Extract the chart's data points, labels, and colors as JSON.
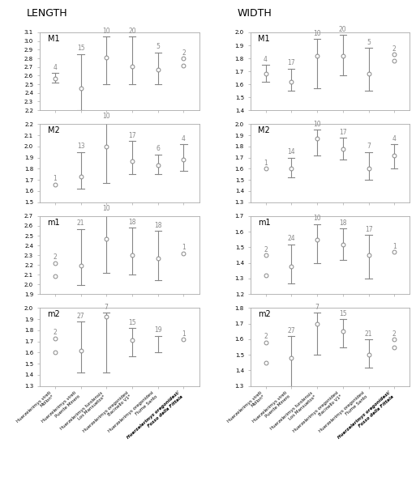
{
  "col_titles": [
    "LENGTH",
    "WIDTH"
  ],
  "row_labels": [
    "M1",
    "M2",
    "m1",
    "m2"
  ],
  "x_labels": [
    "Huerzelerimys vireti\nMollon*",
    "Huerzelerimys vireti\nPuente Minero",
    "Huerzelerimys turolensis\nLos Mansuetos*",
    "Huerzelerimys oregonidesi\nBacinello V1*",
    "Huerzelerimys oregonidesi\nFiume Santo",
    "Huerzelerimys oregonidesi/\nFosso della Fittaia"
  ],
  "panels": {
    "LENGTH_M1": {
      "n": [
        4,
        15,
        10,
        20,
        5,
        2
      ],
      "mean": [
        2.57,
        2.45,
        2.81,
        2.71,
        2.67,
        null
      ],
      "min": [
        2.52,
        2.2,
        2.5,
        2.5,
        2.5,
        2.72
      ],
      "max": [
        2.63,
        2.85,
        3.05,
        3.05,
        2.87,
        2.8
      ],
      "two_singles": [
        false,
        false,
        false,
        false,
        false,
        true
      ],
      "single_vals": [
        null,
        null,
        null,
        null,
        null,
        [
          2.72,
          2.8
        ]
      ],
      "ylim": [
        2.2,
        3.1
      ],
      "yticks": [
        2.2,
        2.3,
        2.4,
        2.5,
        2.6,
        2.7,
        2.8,
        2.9,
        3.0,
        3.1
      ]
    },
    "LENGTH_M2": {
      "n": [
        1,
        13,
        10,
        17,
        6,
        4
      ],
      "mean": [
        null,
        1.73,
        2.0,
        1.87,
        1.83,
        1.88
      ],
      "min": [
        1.66,
        1.62,
        1.67,
        1.75,
        1.75,
        1.78
      ],
      "max": [
        1.66,
        1.95,
        2.22,
        2.05,
        1.93,
        2.02
      ],
      "two_singles": [
        false,
        false,
        false,
        false,
        false,
        false
      ],
      "single_vals": [
        1.66,
        null,
        null,
        null,
        null,
        null
      ],
      "ylim": [
        1.5,
        2.2
      ],
      "yticks": [
        1.5,
        1.6,
        1.7,
        1.8,
        1.9,
        2.0,
        2.1,
        2.2
      ]
    },
    "LENGTH_m1": {
      "n": [
        2,
        21,
        10,
        18,
        18,
        1
      ],
      "mean": [
        null,
        2.19,
        2.47,
        2.3,
        2.27,
        null
      ],
      "min": [
        2.08,
        1.99,
        2.12,
        2.1,
        2.04,
        2.32
      ],
      "max": [
        2.22,
        2.57,
        2.72,
        2.58,
        2.55,
        2.32
      ],
      "two_singles": [
        true,
        false,
        false,
        false,
        false,
        false
      ],
      "single_vals": [
        [
          2.08,
          2.22
        ],
        null,
        null,
        null,
        null,
        2.32
      ],
      "ylim": [
        1.9,
        2.7
      ],
      "yticks": [
        1.9,
        2.0,
        2.1,
        2.2,
        2.3,
        2.4,
        2.5,
        2.6,
        2.7
      ]
    },
    "LENGTH_m2": {
      "n": [
        2,
        27,
        7,
        15,
        19,
        1
      ],
      "mean": [
        null,
        1.62,
        1.92,
        1.71,
        null,
        null
      ],
      "min": [
        1.6,
        1.42,
        1.42,
        1.57,
        1.6,
        1.72
      ],
      "max": [
        1.73,
        1.88,
        1.96,
        1.82,
        1.75,
        1.72
      ],
      "two_singles": [
        true,
        false,
        false,
        false,
        false,
        false
      ],
      "single_vals": [
        [
          1.6,
          1.73
        ],
        null,
        null,
        null,
        null,
        1.72
      ],
      "ylim": [
        1.3,
        2.0
      ],
      "yticks": [
        1.3,
        1.4,
        1.5,
        1.6,
        1.7,
        1.8,
        1.9,
        2.0
      ]
    },
    "WIDTH_M1": {
      "n": [
        4,
        17,
        10,
        20,
        5,
        2
      ],
      "mean": [
        1.68,
        1.62,
        1.82,
        1.82,
        1.68,
        null
      ],
      "min": [
        1.62,
        1.55,
        1.57,
        1.67,
        1.55,
        1.78
      ],
      "max": [
        1.75,
        1.72,
        1.95,
        1.98,
        1.88,
        1.83
      ],
      "two_singles": [
        false,
        false,
        false,
        false,
        false,
        true
      ],
      "single_vals": [
        null,
        null,
        null,
        null,
        null,
        [
          1.78,
          1.83
        ]
      ],
      "ylim": [
        1.4,
        2.0
      ],
      "yticks": [
        1.4,
        1.5,
        1.6,
        1.7,
        1.8,
        1.9,
        2.0
      ]
    },
    "WIDTH_M2": {
      "n": [
        1,
        14,
        10,
        17,
        7,
        4
      ],
      "mean": [
        null,
        1.6,
        1.87,
        1.78,
        1.6,
        1.72
      ],
      "min": [
        1.6,
        1.52,
        1.72,
        1.68,
        1.5,
        1.6
      ],
      "max": [
        1.6,
        1.7,
        1.95,
        1.88,
        1.75,
        1.82
      ],
      "two_singles": [
        false,
        false,
        false,
        false,
        false,
        false
      ],
      "single_vals": [
        1.6,
        null,
        null,
        null,
        null,
        null
      ],
      "ylim": [
        1.3,
        2.0
      ],
      "yticks": [
        1.3,
        1.4,
        1.5,
        1.6,
        1.7,
        1.8,
        1.9,
        2.0
      ]
    },
    "WIDTH_m1": {
      "n": [
        2,
        24,
        10,
        18,
        17,
        1
      ],
      "mean": [
        null,
        1.38,
        1.55,
        1.52,
        1.45,
        null
      ],
      "min": [
        1.32,
        1.27,
        1.4,
        1.42,
        1.3,
        1.47
      ],
      "max": [
        1.45,
        1.52,
        1.65,
        1.62,
        1.58,
        1.47
      ],
      "two_singles": [
        true,
        false,
        false,
        false,
        false,
        false
      ],
      "single_vals": [
        [
          1.32,
          1.45
        ],
        null,
        null,
        null,
        null,
        1.47
      ],
      "ylim": [
        1.2,
        1.7
      ],
      "yticks": [
        1.2,
        1.3,
        1.4,
        1.5,
        1.6,
        1.7
      ]
    },
    "WIDTH_m2": {
      "n": [
        2,
        27,
        7,
        15,
        21,
        2
      ],
      "mean": [
        null,
        1.48,
        1.7,
        1.65,
        1.5,
        null
      ],
      "min": [
        1.45,
        1.3,
        1.5,
        1.55,
        1.42,
        1.55
      ],
      "max": [
        1.58,
        1.62,
        1.77,
        1.73,
        1.6,
        1.6
      ],
      "two_singles": [
        true,
        false,
        false,
        false,
        false,
        true
      ],
      "single_vals": [
        [
          1.45,
          1.58
        ],
        null,
        null,
        null,
        null,
        [
          1.55,
          1.6
        ]
      ],
      "ylim": [
        1.3,
        1.8
      ],
      "yticks": [
        1.3,
        1.4,
        1.5,
        1.6,
        1.7,
        1.8
      ]
    }
  },
  "panel_order": [
    [
      "LENGTH_M1",
      "WIDTH_M1"
    ],
    [
      "LENGTH_M2",
      "WIDTH_M2"
    ],
    [
      "LENGTH_m1",
      "WIDTH_m1"
    ],
    [
      "LENGTH_m2",
      "WIDTH_m2"
    ]
  ],
  "marker_color": "#888888",
  "line_color": "#888888",
  "text_color": "#888888",
  "bg_color": "#ffffff"
}
